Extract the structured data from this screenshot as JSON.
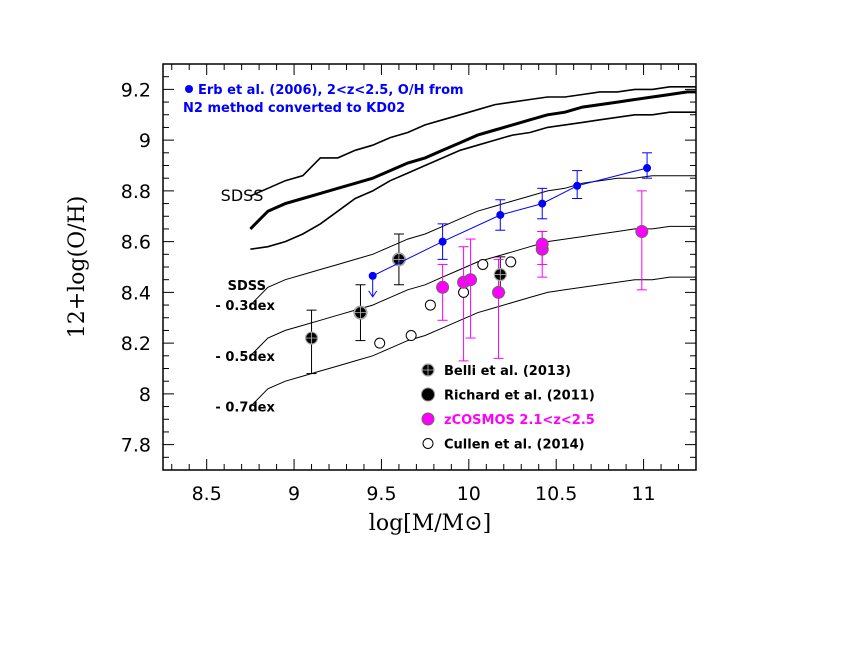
{
  "chart_data": {
    "type": "scatter",
    "title": "",
    "xlabel": "log[M/M⊙]",
    "ylabel": "12+log(O/H)",
    "xlim": [
      8.25,
      11.3
    ],
    "ylim": [
      7.7,
      9.3
    ],
    "xticks": [
      8.5,
      9,
      9.5,
      10,
      10.5,
      11
    ],
    "xtick_labels": [
      "8.5",
      "9",
      "9.5",
      "10",
      "10.5",
      "11"
    ],
    "yticks": [
      7.8,
      8,
      8.2,
      8.4,
      8.6,
      8.8,
      9,
      9.2
    ],
    "ytick_labels": [
      "7.8",
      "8",
      "8.2",
      "8.4",
      "8.6",
      "8.8",
      "9",
      "9.2"
    ],
    "reference_curves": [
      {
        "role": "sdss-median",
        "x": [
          8.75,
          8.85,
          8.95,
          9.05,
          9.15,
          9.25,
          9.35,
          9.45,
          9.55,
          9.65,
          9.75,
          9.85,
          9.95,
          10.05,
          10.15,
          10.25,
          10.35,
          10.45,
          10.55,
          10.65,
          10.75,
          10.85,
          10.95,
          11.05,
          11.15,
          11.25,
          11.3
        ],
        "y": [
          8.65,
          8.72,
          8.75,
          8.77,
          8.79,
          8.81,
          8.83,
          8.85,
          8.88,
          8.91,
          8.93,
          8.96,
          8.99,
          9.02,
          9.04,
          9.06,
          9.08,
          9.1,
          9.11,
          9.13,
          9.14,
          9.15,
          9.16,
          9.17,
          9.18,
          9.19,
          9.19
        ]
      },
      {
        "role": "sdss-upper",
        "x": [
          8.75,
          8.85,
          8.95,
          9.05,
          9.15,
          9.25,
          9.35,
          9.45,
          9.55,
          9.65,
          9.75,
          9.85,
          9.95,
          10.05,
          10.15,
          10.25,
          10.35,
          10.45,
          10.55,
          10.65,
          10.75,
          10.85,
          10.95,
          11.05,
          11.15,
          11.25,
          11.3
        ],
        "y": [
          8.78,
          8.81,
          8.84,
          8.86,
          8.93,
          8.93,
          8.96,
          8.98,
          9.01,
          9.03,
          9.06,
          9.08,
          9.1,
          9.12,
          9.14,
          9.15,
          9.16,
          9.17,
          9.17,
          9.18,
          9.19,
          9.19,
          9.2,
          9.2,
          9.21,
          9.21,
          9.21
        ]
      },
      {
        "role": "sdss-lower",
        "x": [
          8.75,
          8.85,
          8.95,
          9.05,
          9.15,
          9.25,
          9.35,
          9.45,
          9.55,
          9.65,
          9.75,
          9.85,
          9.95,
          10.05,
          10.15,
          10.25,
          10.35,
          10.45,
          10.55,
          10.65,
          10.75,
          10.85,
          10.95,
          11.05,
          11.15,
          11.25,
          11.3
        ],
        "y": [
          8.57,
          8.58,
          8.6,
          8.63,
          8.67,
          8.72,
          8.77,
          8.8,
          8.84,
          8.87,
          8.9,
          8.93,
          8.96,
          8.98,
          9.0,
          9.02,
          9.03,
          9.05,
          9.06,
          9.07,
          9.08,
          9.09,
          9.1,
          9.1,
          9.11,
          9.11,
          9.11
        ]
      },
      {
        "role": "sdss-minus-0.3dex",
        "x": [
          8.75,
          8.85,
          8.95,
          9.05,
          9.15,
          9.25,
          9.35,
          9.45,
          9.55,
          9.65,
          9.75,
          9.85,
          9.95,
          10.05,
          10.15,
          10.25,
          10.35,
          10.45,
          10.55,
          10.65,
          10.75,
          10.85,
          10.95,
          11.05,
          11.15,
          11.25,
          11.3
        ],
        "y": [
          8.35,
          8.42,
          8.45,
          8.47,
          8.49,
          8.51,
          8.53,
          8.55,
          8.58,
          8.61,
          8.63,
          8.66,
          8.69,
          8.72,
          8.74,
          8.76,
          8.78,
          8.8,
          8.81,
          8.83,
          8.84,
          8.85,
          8.85,
          8.86,
          8.86,
          8.86,
          8.86
        ]
      },
      {
        "role": "sdss-minus-0.5dex",
        "x": [
          8.75,
          8.85,
          8.95,
          9.05,
          9.15,
          9.25,
          9.35,
          9.45,
          9.55,
          9.65,
          9.75,
          9.85,
          9.95,
          10.05,
          10.15,
          10.25,
          10.35,
          10.45,
          10.55,
          10.65,
          10.75,
          10.85,
          10.95,
          11.05,
          11.15,
          11.25,
          11.3
        ],
        "y": [
          8.15,
          8.22,
          8.25,
          8.27,
          8.29,
          8.31,
          8.33,
          8.35,
          8.38,
          8.41,
          8.43,
          8.46,
          8.49,
          8.52,
          8.54,
          8.56,
          8.58,
          8.6,
          8.61,
          8.62,
          8.63,
          8.64,
          8.65,
          8.65,
          8.66,
          8.66,
          8.66
        ]
      },
      {
        "role": "sdss-minus-0.7dex",
        "x": [
          8.75,
          8.85,
          8.95,
          9.05,
          9.15,
          9.25,
          9.35,
          9.45,
          9.55,
          9.65,
          9.75,
          9.85,
          9.95,
          10.05,
          10.15,
          10.25,
          10.35,
          10.45,
          10.55,
          10.65,
          10.75,
          10.85,
          10.95,
          11.05,
          11.15,
          11.25,
          11.3
        ],
        "y": [
          7.95,
          8.02,
          8.05,
          8.07,
          8.09,
          8.11,
          8.13,
          8.15,
          8.18,
          8.21,
          8.23,
          8.26,
          8.29,
          8.32,
          8.34,
          8.36,
          8.38,
          8.4,
          8.41,
          8.42,
          8.43,
          8.44,
          8.45,
          8.45,
          8.46,
          8.46,
          8.46
        ]
      }
    ],
    "series": [
      {
        "name": "Erb et al. (2006), 2<z<2.5, O/H from N2 method converted to KD02",
        "color": "#0000ff",
        "marker": "small-filled-circle",
        "connected": true,
        "points": [
          {
            "x": 9.45,
            "y": 8.465,
            "upper_limit": true
          },
          {
            "x": 9.85,
            "y": 8.6,
            "yerr_lo": 0.07,
            "yerr_hi": 0.07
          },
          {
            "x": 10.18,
            "y": 8.705,
            "yerr_lo": 0.06,
            "yerr_hi": 0.06
          },
          {
            "x": 10.42,
            "y": 8.75,
            "yerr_lo": 0.06,
            "yerr_hi": 0.06
          },
          {
            "x": 10.62,
            "y": 8.82,
            "yerr_lo": 0.05,
            "yerr_hi": 0.06
          },
          {
            "x": 11.02,
            "y": 8.89,
            "yerr_lo": 0.04,
            "yerr_hi": 0.06
          }
        ]
      },
      {
        "name": "Belli et al. (2013)",
        "color": "#000000",
        "marker": "circle-with-cross",
        "points": [
          {
            "x": 9.1,
            "y": 8.22,
            "yerr_lo": 0.14,
            "yerr_hi": 0.11
          },
          {
            "x": 9.38,
            "y": 8.32,
            "yerr_lo": 0.11,
            "yerr_hi": 0.11
          },
          {
            "x": 9.6,
            "y": 8.53,
            "yerr_lo": 0.1,
            "yerr_hi": 0.1
          },
          {
            "x": 10.18,
            "y": 8.47,
            "yerr_lo": 0.07,
            "yerr_hi": 0.07
          }
        ]
      },
      {
        "name": "Richard et al. (2011)",
        "color": "#000000",
        "marker": "large-filled-circle",
        "points": [
          {
            "x": 9.38,
            "y": 8.32
          },
          {
            "x": 9.6,
            "y": 8.53
          }
        ]
      },
      {
        "name": "zCOSMOS 2.1<z<2.5",
        "color": "#ff00ff",
        "marker": "filled-circle",
        "points": [
          {
            "x": 9.85,
            "y": 8.42,
            "yerr_lo": 0.13,
            "yerr_hi": 0.09
          },
          {
            "x": 9.97,
            "y": 8.44,
            "yerr_lo": 0.31,
            "yerr_hi": 0.14
          },
          {
            "x": 10.01,
            "y": 8.45,
            "yerr_lo": 0.23,
            "yerr_hi": 0.16
          },
          {
            "x": 10.17,
            "y": 8.4,
            "yerr_lo": 0.26,
            "yerr_hi": 0.13
          },
          {
            "x": 10.42,
            "y": 8.57,
            "yerr_lo": 0.11,
            "yerr_hi": 0.07
          },
          {
            "x": 10.42,
            "y": 8.59,
            "yerr_lo": 0.08,
            "yerr_hi": 0.05
          },
          {
            "x": 10.99,
            "y": 8.64,
            "yerr_lo": 0.23,
            "yerr_hi": 0.16
          }
        ]
      },
      {
        "name": "Cullen et al. (2014)",
        "color": "#000000",
        "marker": "open-circle",
        "points": [
          {
            "x": 9.49,
            "y": 8.2
          },
          {
            "x": 9.67,
            "y": 8.23
          },
          {
            "x": 9.78,
            "y": 8.35
          },
          {
            "x": 9.97,
            "y": 8.4
          },
          {
            "x": 10.08,
            "y": 8.51
          },
          {
            "x": 10.24,
            "y": 8.52
          }
        ]
      }
    ],
    "annotations": [
      {
        "text": "SDSS",
        "x": 8.58,
        "y": 8.78
      },
      {
        "text": "SDSS",
        "x": 8.62,
        "y": 8.43
      },
      {
        "text": "- 0.3dex",
        "x": 8.55,
        "y": 8.35
      },
      {
        "text": "- 0.5dex",
        "x": 8.55,
        "y": 8.15
      },
      {
        "text": "- 0.7dex",
        "x": 8.55,
        "y": 7.95
      }
    ],
    "erb_label": {
      "line1": "Erb et al. (2006), 2<z<2.5, O/H from",
      "line2": "N2 method converted to KD02"
    },
    "legend": [
      {
        "label": "Belli et al. (2013)",
        "color": "#000000",
        "marker": "circle-with-cross"
      },
      {
        "label": "Richard et al. (2011)",
        "color": "#000000",
        "marker": "large-filled-circle"
      },
      {
        "label": "zCOSMOS 2.1<z<2.5",
        "color": "#ff00ff",
        "marker": "filled-circle"
      },
      {
        "label": "Cullen et al. (2014)",
        "color": "#000000",
        "marker": "open-circle"
      }
    ],
    "legend_placement": "lower-right",
    "grid": false
  }
}
